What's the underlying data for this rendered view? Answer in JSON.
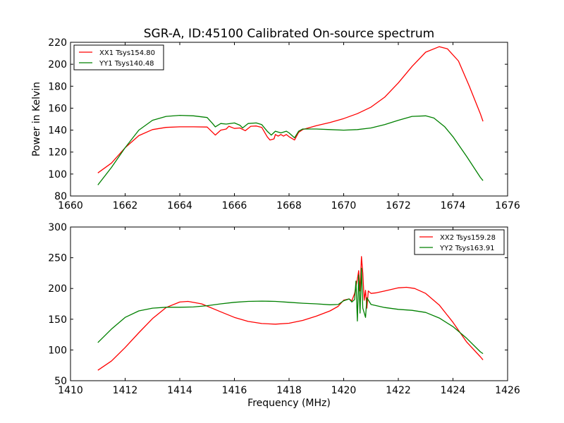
{
  "chart_data": [
    {
      "type": "line",
      "title": "SGR-A, ID:45100 Calibrated On-source spectrum",
      "xlabel": "",
      "ylabel": "Power in Kelvin",
      "xlim": [
        1660,
        1676
      ],
      "ylim": [
        80,
        220
      ],
      "xticks": [
        "1660",
        "1662",
        "1664",
        "1666",
        "1668",
        "1670",
        "1672",
        "1674",
        "1676"
      ],
      "yticks": [
        "80",
        "100",
        "120",
        "140",
        "160",
        "180",
        "200",
        "220"
      ],
      "legend_position": "top-left",
      "series": [
        {
          "name": "XX1 Tsys154.80",
          "color": "#ff0000",
          "points": [
            [
              1661.0,
              101
            ],
            [
              1661.5,
              110
            ],
            [
              1662.0,
              124
            ],
            [
              1662.5,
              135
            ],
            [
              1663.0,
              140.5
            ],
            [
              1663.5,
              142.5
            ],
            [
              1664.0,
              143
            ],
            [
              1664.5,
              143
            ],
            [
              1665.0,
              142.8
            ],
            [
              1665.2,
              138
            ],
            [
              1665.3,
              135.5
            ],
            [
              1665.5,
              140
            ],
            [
              1665.7,
              141
            ],
            [
              1665.8,
              143.5
            ],
            [
              1666.0,
              141.5
            ],
            [
              1666.2,
              142
            ],
            [
              1666.4,
              139.5
            ],
            [
              1666.6,
              143.5
            ],
            [
              1666.8,
              143.8
            ],
            [
              1667.0,
              142.5
            ],
            [
              1667.2,
              134
            ],
            [
              1667.3,
              131
            ],
            [
              1667.45,
              132
            ],
            [
              1667.5,
              136
            ],
            [
              1667.6,
              134.5
            ],
            [
              1667.7,
              136
            ],
            [
              1667.8,
              134.5
            ],
            [
              1667.9,
              136
            ],
            [
              1668.0,
              134
            ],
            [
              1668.2,
              131
            ],
            [
              1668.35,
              138
            ],
            [
              1668.5,
              140.5
            ],
            [
              1669.0,
              144
            ],
            [
              1669.5,
              147
            ],
            [
              1670.0,
              150.5
            ],
            [
              1670.5,
              155
            ],
            [
              1671.0,
              161
            ],
            [
              1671.5,
              170
            ],
            [
              1672.0,
              183
            ],
            [
              1672.5,
              198
            ],
            [
              1673.0,
              211
            ],
            [
              1673.5,
              216
            ],
            [
              1673.8,
              214
            ],
            [
              1674.2,
              203
            ],
            [
              1674.6,
              180
            ],
            [
              1675.0,
              155
            ],
            [
              1675.1,
              148
            ]
          ]
        },
        {
          "name": "YY1 Tsys140.48",
          "color": "#008000",
          "points": [
            [
              1661.0,
              90
            ],
            [
              1661.5,
              106
            ],
            [
              1662.0,
              124
            ],
            [
              1662.5,
              140
            ],
            [
              1663.0,
              149
            ],
            [
              1663.5,
              152.5
            ],
            [
              1664.0,
              153.5
            ],
            [
              1664.5,
              153
            ],
            [
              1665.0,
              151.5
            ],
            [
              1665.2,
              146
            ],
            [
              1665.3,
              143
            ],
            [
              1665.5,
              146
            ],
            [
              1665.7,
              145.5
            ],
            [
              1666.0,
              146.5
            ],
            [
              1666.2,
              144.5
            ],
            [
              1666.3,
              142
            ],
            [
              1666.5,
              146
            ],
            [
              1666.8,
              146.5
            ],
            [
              1667.0,
              145
            ],
            [
              1667.2,
              139
            ],
            [
              1667.35,
              135.5
            ],
            [
              1667.5,
              139
            ],
            [
              1667.7,
              137.5
            ],
            [
              1667.9,
              139
            ],
            [
              1668.0,
              137.5
            ],
            [
              1668.2,
              133
            ],
            [
              1668.35,
              139
            ],
            [
              1668.5,
              141
            ],
            [
              1669.0,
              141
            ],
            [
              1669.5,
              140.5
            ],
            [
              1670.0,
              140
            ],
            [
              1670.5,
              140.5
            ],
            [
              1671.0,
              142
            ],
            [
              1671.5,
              145
            ],
            [
              1672.0,
              149
            ],
            [
              1672.5,
              152.5
            ],
            [
              1673.0,
              153
            ],
            [
              1673.3,
              151
            ],
            [
              1673.7,
              143
            ],
            [
              1674.0,
              134
            ],
            [
              1674.5,
              116
            ],
            [
              1675.0,
              97
            ],
            [
              1675.1,
              94
            ]
          ]
        }
      ]
    },
    {
      "type": "line",
      "title": "",
      "xlabel": "Frequency (MHz)",
      "ylabel": "",
      "xlim": [
        1410,
        1426
      ],
      "ylim": [
        50,
        300
      ],
      "xticks": [
        "1410",
        "1412",
        "1414",
        "1416",
        "1418",
        "1420",
        "1422",
        "1424",
        "1426"
      ],
      "yticks": [
        "50",
        "100",
        "150",
        "200",
        "250",
        "300"
      ],
      "legend_position": "top-right",
      "series": [
        {
          "name": "XX2 Tsys159.28",
          "color": "#ff0000",
          "points": [
            [
              1411.0,
              67
            ],
            [
              1411.5,
              82
            ],
            [
              1412.0,
              104
            ],
            [
              1412.5,
              128
            ],
            [
              1413.0,
              151
            ],
            [
              1413.5,
              169
            ],
            [
              1414.0,
              178
            ],
            [
              1414.3,
              179
            ],
            [
              1414.8,
              175
            ],
            [
              1415.5,
              162
            ],
            [
              1416.0,
              153
            ],
            [
              1416.5,
              146.5
            ],
            [
              1417.0,
              143
            ],
            [
              1417.5,
              142
            ],
            [
              1418.0,
              143.5
            ],
            [
              1418.5,
              148
            ],
            [
              1419.0,
              155
            ],
            [
              1419.5,
              163.5
            ],
            [
              1419.8,
              171
            ],
            [
              1420.0,
              181
            ],
            [
              1420.2,
              183
            ],
            [
              1420.3,
              180
            ],
            [
              1420.4,
              192
            ],
            [
              1420.5,
              215
            ],
            [
              1420.55,
              229
            ],
            [
              1420.6,
              196
            ],
            [
              1420.65,
              252
            ],
            [
              1420.7,
              225
            ],
            [
              1420.75,
              181
            ],
            [
              1420.8,
              197
            ],
            [
              1420.85,
              168
            ],
            [
              1420.9,
              196
            ],
            [
              1421.0,
              192
            ],
            [
              1421.2,
              193
            ],
            [
              1421.5,
              196
            ],
            [
              1422.0,
              201
            ],
            [
              1422.3,
              202
            ],
            [
              1422.6,
              200
            ],
            [
              1423.0,
              192
            ],
            [
              1423.5,
              173
            ],
            [
              1424.0,
              145
            ],
            [
              1424.5,
              113
            ],
            [
              1425.0,
              89
            ],
            [
              1425.1,
              84
            ]
          ]
        },
        {
          "name": "YY2 Tsys163.91",
          "color": "#008000",
          "points": [
            [
              1411.0,
              112
            ],
            [
              1411.5,
              134
            ],
            [
              1412.0,
              153
            ],
            [
              1412.5,
              163.5
            ],
            [
              1413.0,
              168
            ],
            [
              1413.5,
              169.5
            ],
            [
              1414.0,
              169.5
            ],
            [
              1414.5,
              170
            ],
            [
              1415.0,
              172
            ],
            [
              1415.5,
              175
            ],
            [
              1416.0,
              177.5
            ],
            [
              1416.5,
              179
            ],
            [
              1417.0,
              179.5
            ],
            [
              1417.5,
              179
            ],
            [
              1418.0,
              177.5
            ],
            [
              1418.5,
              176
            ],
            [
              1419.0,
              175
            ],
            [
              1419.5,
              173.5
            ],
            [
              1419.8,
              174
            ],
            [
              1420.0,
              180
            ],
            [
              1420.2,
              183
            ],
            [
              1420.3,
              178
            ],
            [
              1420.4,
              182
            ],
            [
              1420.45,
              212
            ],
            [
              1420.5,
              147
            ],
            [
              1420.55,
              222
            ],
            [
              1420.6,
              160
            ],
            [
              1420.65,
              233
            ],
            [
              1420.7,
              168
            ],
            [
              1420.8,
              153
            ],
            [
              1420.85,
              185
            ],
            [
              1421.0,
              174
            ],
            [
              1421.5,
              169
            ],
            [
              1422.0,
              166
            ],
            [
              1422.5,
              164.5
            ],
            [
              1423.0,
              161
            ],
            [
              1423.5,
              152
            ],
            [
              1424.0,
              138
            ],
            [
              1424.5,
              119
            ],
            [
              1425.0,
              97
            ],
            [
              1425.1,
              94
            ]
          ]
        }
      ]
    }
  ]
}
